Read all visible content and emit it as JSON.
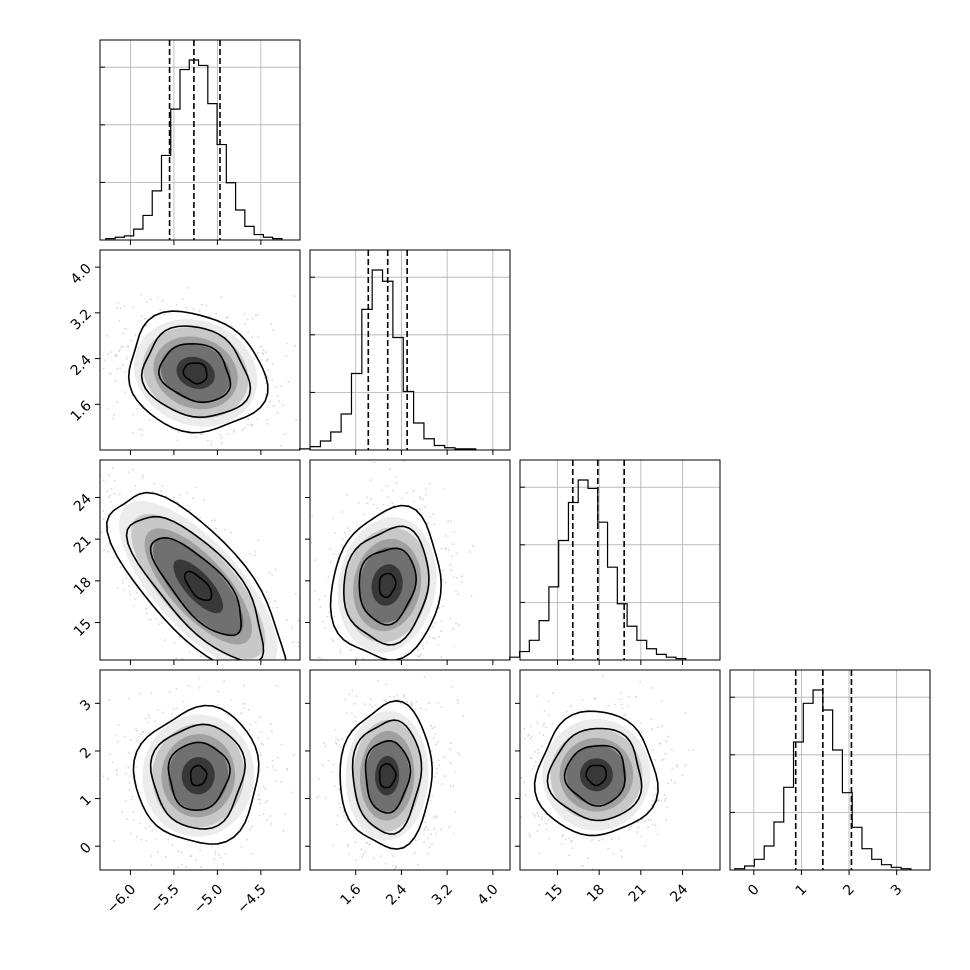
{
  "chart_data": {
    "type": "corner",
    "title": "",
    "parameters": [
      {
        "ticks": [
          -6.0,
          -5.5,
          -5.0,
          -4.5
        ],
        "tick_labels": [
          "−6.0",
          "−5.5",
          "−5.0",
          "−4.5"
        ],
        "range": [
          -6.35,
          -4.05
        ],
        "quantiles": [
          -5.55,
          -5.27,
          -4.97
        ]
      },
      {
        "ticks": [
          1.6,
          2.4,
          3.2,
          4.0
        ],
        "tick_labels": [
          "1.6",
          "2.4",
          "3.2",
          "4.0"
        ],
        "range": [
          0.8,
          4.3
        ],
        "quantiles": [
          1.82,
          2.16,
          2.5
        ]
      },
      {
        "ticks": [
          15,
          18,
          21,
          24
        ],
        "tick_labels": [
          "15",
          "18",
          "21",
          "24"
        ],
        "range": [
          12.3,
          26.7
        ],
        "quantiles": [
          16.1,
          17.9,
          19.8
        ]
      },
      {
        "ticks": [
          0,
          1,
          2,
          3
        ],
        "tick_labels": [
          "0",
          "1",
          "2",
          "3"
        ],
        "range": [
          -0.5,
          3.7
        ],
        "quantiles": [
          0.88,
          1.45,
          2.05
        ]
      }
    ],
    "histograms": [
      {
        "counts": [
          1,
          2,
          3,
          8,
          18,
          36,
          62,
          96,
          125,
          132,
          128,
          100,
          70,
          42,
          22,
          10,
          4,
          2,
          1
        ]
      },
      {
        "counts": [
          1,
          3,
          8,
          16,
          32,
          68,
          125,
          160,
          150,
          100,
          52,
          24,
          10,
          4,
          2,
          1,
          1
        ]
      },
      {
        "counts": [
          2,
          6,
          14,
          28,
          52,
          85,
          112,
          128,
          122,
          98,
          66,
          40,
          24,
          14,
          8,
          4,
          2,
          1
        ]
      },
      {
        "counts": [
          1,
          3,
          8,
          18,
          36,
          62,
          96,
          125,
          135,
          120,
          90,
          58,
          32,
          16,
          8,
          4,
          2,
          1
        ]
      }
    ],
    "pairs": [
      {
        "row": 1,
        "col": 0,
        "center": [
          -5.25,
          2.15
        ],
        "contour_radii": [
          [
            0.35,
            0.29
          ],
          [
            0.27,
            0.22
          ],
          [
            0.18,
            0.14
          ],
          [
            0.06,
            0.05
          ]
        ],
        "angle_deg": -22
      },
      {
        "row": 2,
        "col": 0,
        "center": [
          -5.22,
          17.6
        ],
        "contour_radii": [
          [
            0.6,
            0.24
          ],
          [
            0.46,
            0.18
          ],
          [
            0.31,
            0.12
          ],
          [
            0.09,
            0.04
          ]
        ],
        "angle_deg": -48
      },
      {
        "row": 2,
        "col": 1,
        "center": [
          2.15,
          17.7
        ],
        "contour_radii": [
          [
            0.38,
            0.27
          ],
          [
            0.29,
            0.21
          ],
          [
            0.19,
            0.14
          ],
          [
            0.06,
            0.04
          ]
        ],
        "angle_deg": 80
      },
      {
        "row": 3,
        "col": 0,
        "center": [
          -5.22,
          1.48
        ],
        "contour_radii": [
          [
            0.34,
            0.31
          ],
          [
            0.26,
            0.23
          ],
          [
            0.17,
            0.15
          ],
          [
            0.05,
            0.04
          ]
        ],
        "angle_deg": 85
      },
      {
        "row": 3,
        "col": 1,
        "center": [
          2.15,
          1.48
        ],
        "contour_radii": [
          [
            0.36,
            0.23
          ],
          [
            0.28,
            0.17
          ],
          [
            0.18,
            0.11
          ],
          [
            0.06,
            0.04
          ]
        ],
        "angle_deg": 88
      },
      {
        "row": 3,
        "col": 2,
        "center": [
          17.8,
          1.5
        ],
        "contour_radii": [
          [
            0.3,
            0.31
          ],
          [
            0.23,
            0.23
          ],
          [
            0.15,
            0.15
          ],
          [
            0.05,
            0.05
          ]
        ],
        "angle_deg": 0
      }
    ],
    "grid": true,
    "colors": {
      "line": "#000000",
      "grid": "#b0b0b0",
      "points": "#b5b5b5",
      "density": "#000000"
    }
  }
}
